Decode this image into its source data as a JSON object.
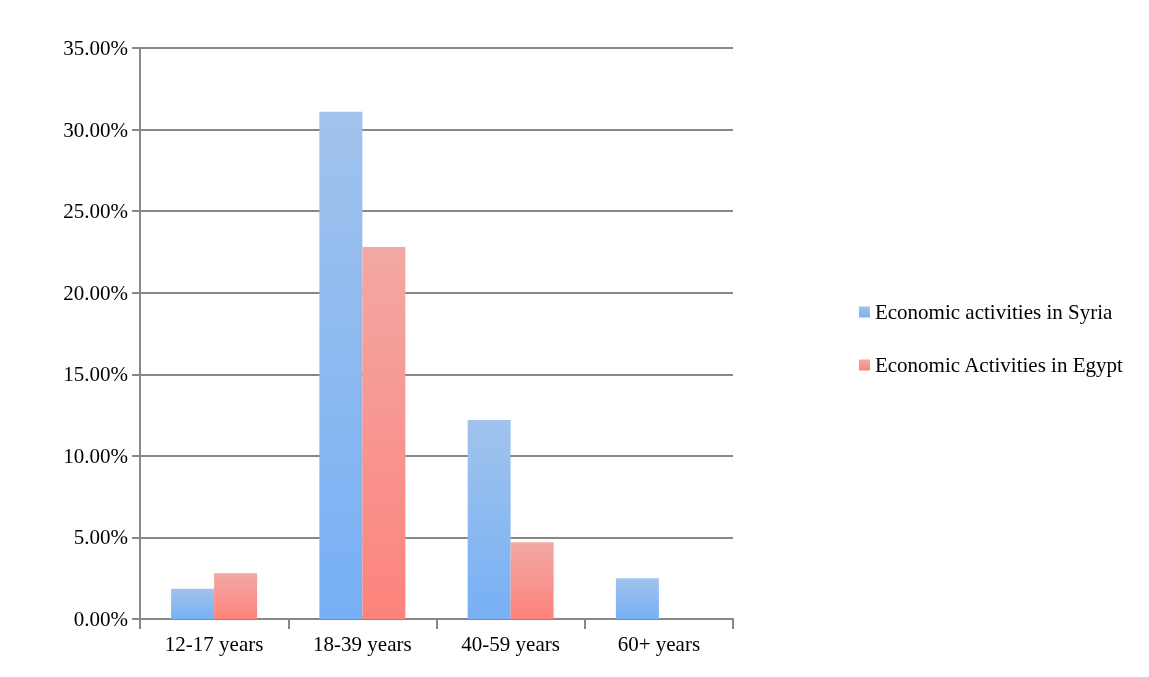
{
  "chart_data": {
    "type": "bar",
    "categories": [
      "12-17 years",
      "18-39 years",
      "40-59 years",
      "60+ years"
    ],
    "series": [
      {
        "name": "Economic activities in Syria",
        "color": "#6fa3e3",
        "values": [
          1.85,
          31.1,
          12.2,
          2.5
        ]
      },
      {
        "name": "Economic Activities in Egypt",
        "color": "#eb7a73",
        "values": [
          2.8,
          22.8,
          4.7,
          0
        ]
      }
    ],
    "ylim": [
      0,
      35
    ],
    "yticks": [
      {
        "value": 0,
        "label": "0.00%"
      },
      {
        "value": 5,
        "label": "5.00%"
      },
      {
        "value": 10,
        "label": "10.00%"
      },
      {
        "value": 15,
        "label": "15.00%"
      },
      {
        "value": 20,
        "label": "20.00%"
      },
      {
        "value": 25,
        "label": "25.00%"
      },
      {
        "value": 30,
        "label": "30.00%"
      },
      {
        "value": 35,
        "label": "35.00%"
      }
    ],
    "grid": "y",
    "legend": "right"
  }
}
